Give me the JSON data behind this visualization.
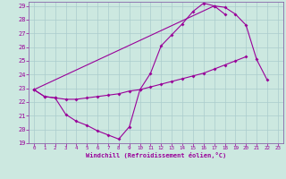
{
  "xlabel": "Windchill (Refroidissement éolien,°C)",
  "x": [
    0,
    1,
    2,
    3,
    4,
    5,
    6,
    7,
    8,
    9,
    10,
    11,
    12,
    13,
    14,
    15,
    16,
    17,
    18,
    19,
    20,
    21,
    22,
    23
  ],
  "line1": [
    22.9,
    22.4,
    22.3,
    21.1,
    20.6,
    20.3,
    19.9,
    19.6,
    19.3,
    20.2,
    22.9,
    24.1,
    26.1,
    26.9,
    27.7,
    28.6,
    29.2,
    29.0,
    28.4,
    null,
    null,
    null,
    null,
    null
  ],
  "line2": [
    22.9,
    22.4,
    22.3,
    22.2,
    22.2,
    22.3,
    22.4,
    22.5,
    22.6,
    22.8,
    22.9,
    23.1,
    23.3,
    23.5,
    23.7,
    23.9,
    24.1,
    24.4,
    24.7,
    25.0,
    25.3,
    null,
    null,
    null
  ],
  "line3": [
    22.9,
    null,
    null,
    null,
    null,
    null,
    null,
    null,
    null,
    null,
    null,
    null,
    null,
    null,
    null,
    null,
    null,
    29.0,
    28.9,
    28.4,
    27.6,
    25.1,
    23.6,
    null
  ],
  "ylim": [
    19,
    29
  ],
  "xlim": [
    -0.5,
    23.5
  ],
  "yticks": [
    19,
    20,
    21,
    22,
    23,
    24,
    25,
    26,
    27,
    28,
    29
  ],
  "xticks": [
    0,
    1,
    2,
    3,
    4,
    5,
    6,
    7,
    8,
    9,
    10,
    11,
    12,
    13,
    14,
    15,
    16,
    17,
    18,
    19,
    20,
    21,
    22,
    23
  ],
  "bg_color": "#cce8e0",
  "line_color": "#990099",
  "grid_color": "#aacccc",
  "spine_color": "#8866aa"
}
